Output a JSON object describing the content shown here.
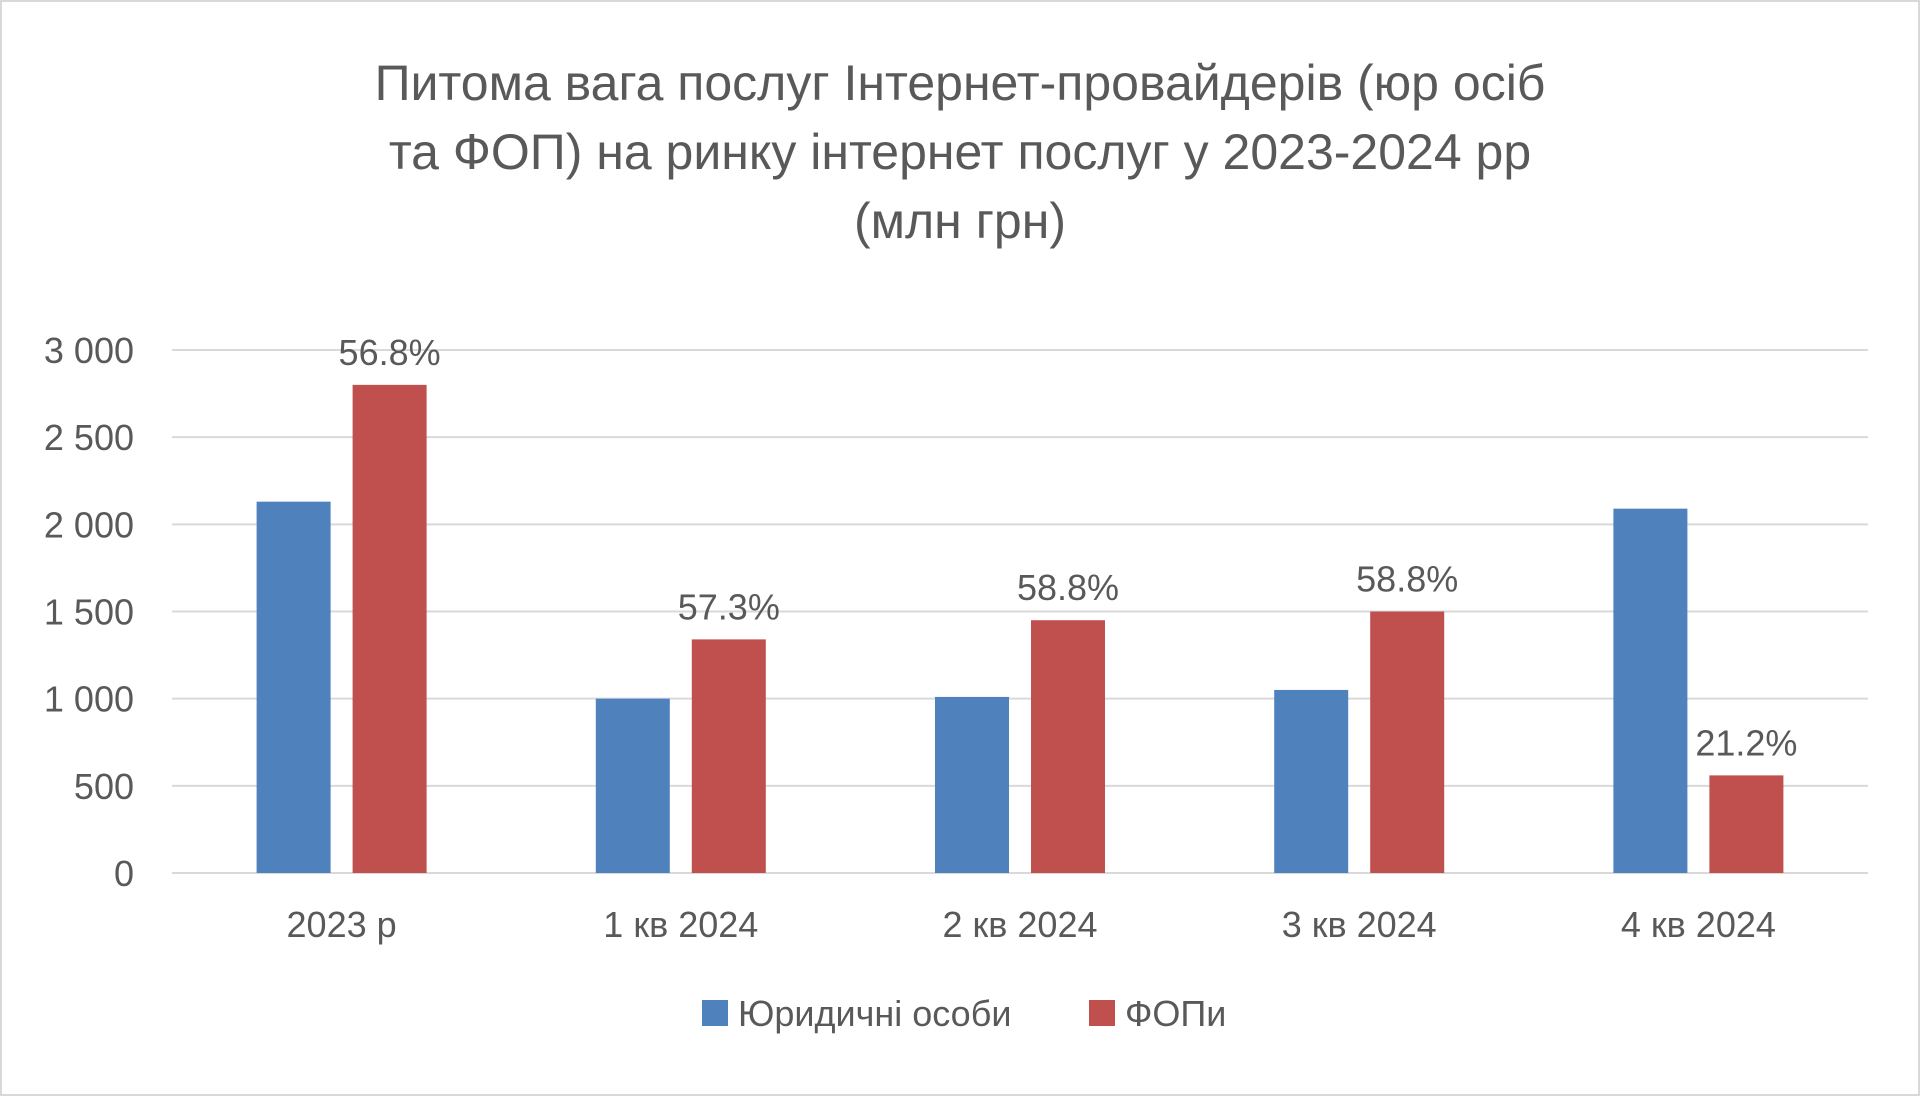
{
  "chart_data": {
    "type": "bar",
    "title_lines": [
      "Питома вага послуг Інтернет-провайдерів (юр осіб",
      "та ФОП) на ринку інтернет послуг у 2023-2024 рр",
      "(млн грн)"
    ],
    "categories": [
      "2023 р",
      "1 кв 2024",
      "2 кв 2024",
      "3 кв 2024",
      "4 кв 2024"
    ],
    "series": [
      {
        "name": "Юридичні особи",
        "color": "#4f81bd",
        "values": [
          2130,
          1000,
          1010,
          1050,
          2090
        ]
      },
      {
        "name": "ФОПи",
        "color": "#c0504d",
        "values": [
          2800,
          1340,
          1450,
          1500,
          560
        ]
      }
    ],
    "data_labels": [
      "56.8%",
      "57.3%",
      "58.8%",
      "58.8%",
      "21.2%"
    ],
    "y_ticks": [
      {
        "value": 0,
        "label": "0"
      },
      {
        "value": 500,
        "label": "500"
      },
      {
        "value": 1000,
        "label": "1 000"
      },
      {
        "value": 1500,
        "label": "1 500"
      },
      {
        "value": 2000,
        "label": "2 000"
      },
      {
        "value": 2500,
        "label": "2 500"
      },
      {
        "value": 3000,
        "label": "3 000"
      }
    ],
    "ylim": [
      0,
      3000
    ],
    "grid": true,
    "legend_position": "bottom",
    "grid_color": "#d9d9d9",
    "text_color": "#595959"
  }
}
